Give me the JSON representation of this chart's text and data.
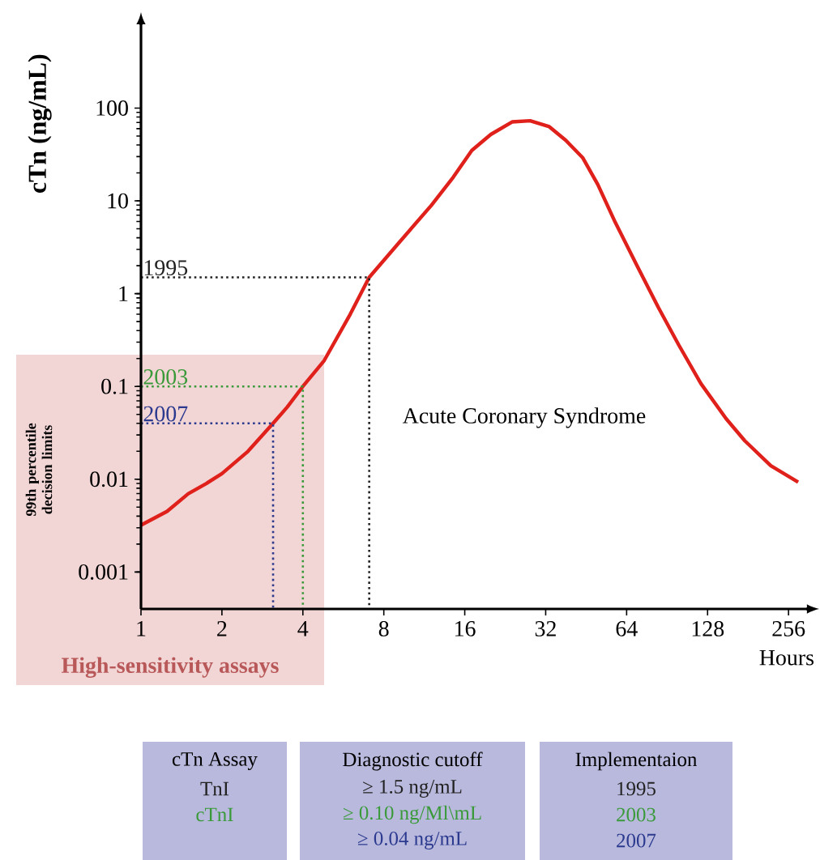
{
  "chart_data": {
    "type": "line",
    "xlabel": "Hours",
    "ylabel": "cTn (ng/mL)",
    "log": "xy",
    "xlim": [
      1,
      300
    ],
    "ylim": [
      0.0004,
      800
    ],
    "xticks": [
      1,
      2,
      4,
      8,
      16,
      32,
      64,
      128,
      256
    ],
    "yticks": [
      0.001,
      0.01,
      0.1,
      1,
      10,
      100
    ],
    "series": [
      {
        "color": "#e0201b",
        "line_style": "solid",
        "x": [
          1,
          1.25,
          1.5,
          1.75,
          2,
          2.5,
          3.1,
          3.5,
          4,
          4.8,
          6,
          7.06,
          9,
          12,
          14.5,
          17,
          20,
          24,
          28,
          33,
          38,
          44,
          50,
          58,
          70,
          84,
          100,
          121,
          150,
          176,
          220,
          278
        ],
        "values": [
          0.0032,
          0.0045,
          0.007,
          0.009,
          0.0115,
          0.02,
          0.04,
          0.06,
          0.1,
          0.19,
          0.6,
          1.5,
          3.4,
          8.9,
          18,
          35,
          52,
          71,
          73,
          63,
          45,
          29,
          15,
          5.9,
          2,
          0.71,
          0.28,
          0.107,
          0.045,
          0.026,
          0.014,
          0.0093
        ]
      },
      {
        "color": "#222222",
        "line_style": "dotted",
        "x": [
          1,
          7.06,
          7.06
        ],
        "values": [
          1.5,
          1.5,
          0.0004
        ]
      },
      {
        "color": "#3a9a3a",
        "line_style": "dotted",
        "x": [
          1,
          4,
          4
        ],
        "values": [
          0.1,
          0.1,
          0.0004
        ]
      },
      {
        "color": "#2b3a8f",
        "line_style": "dotted",
        "x": [
          1,
          3.1,
          3.1
        ],
        "values": [
          0.04,
          0.04,
          0.0004
        ]
      }
    ],
    "bands": [
      {
        "axis": "x",
        "from": 1,
        "to": 4.8,
        "label": "High-sensitivity assays",
        "color": "#f2d5d5"
      }
    ],
    "annotations": [
      {
        "text": "1995",
        "y": 1.5
      },
      {
        "text": "2003",
        "y": 0.1
      },
      {
        "text": "2007",
        "y": 0.04
      },
      "Acute Coronary Syndrome",
      "99th percentile decision limits",
      "cTn Assay",
      "TnI",
      "cTnI",
      "Diagnostic cutoff",
      "≥ 1.5 ng/mL",
      "≥ 0.10 ng/Ml\\mL",
      "≥ 0.04 ng/mL",
      "Implementaion",
      "1995",
      "2003",
      "2007"
    ]
  }
}
